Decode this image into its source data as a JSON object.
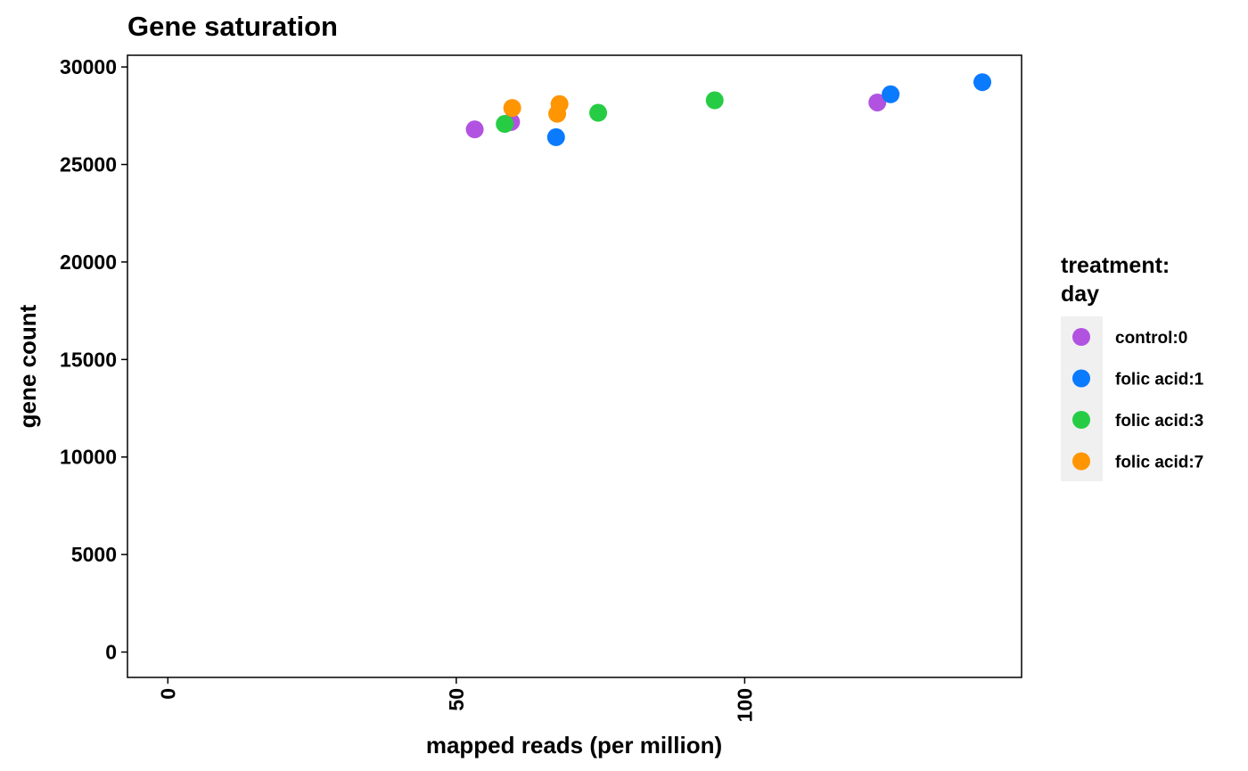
{
  "chart_data": {
    "type": "scatter",
    "title": "Gene saturation",
    "xlabel": "mapped reads (per million)",
    "ylabel": "gene count",
    "xlim": [
      -7,
      148
    ],
    "ylim": [
      -1300,
      30600
    ],
    "x_ticks": [
      0,
      50,
      100
    ],
    "y_ticks": [
      0,
      5000,
      10000,
      15000,
      20000,
      25000,
      30000
    ],
    "grid": false,
    "legend": {
      "title_lines": [
        "treatment:",
        "day"
      ],
      "placement": "right"
    },
    "series": [
      {
        "name": "control:0",
        "color": "#b153e0",
        "points": [
          [
            53.2,
            26800
          ],
          [
            59.5,
            27180
          ],
          [
            123.0,
            28180
          ]
        ]
      },
      {
        "name": "folic acid:1",
        "color": "#0a7aff",
        "points": [
          [
            67.3,
            26400
          ],
          [
            125.3,
            28600
          ],
          [
            141.2,
            29220
          ]
        ]
      },
      {
        "name": "folic acid:3",
        "color": "#26cd44",
        "points": [
          [
            58.4,
            27080
          ],
          [
            74.6,
            27650
          ],
          [
            94.8,
            28290
          ]
        ]
      },
      {
        "name": "folic acid:7",
        "color": "#ff9500",
        "points": [
          [
            59.7,
            27900
          ],
          [
            67.5,
            27600
          ],
          [
            67.9,
            28100
          ]
        ]
      }
    ]
  }
}
